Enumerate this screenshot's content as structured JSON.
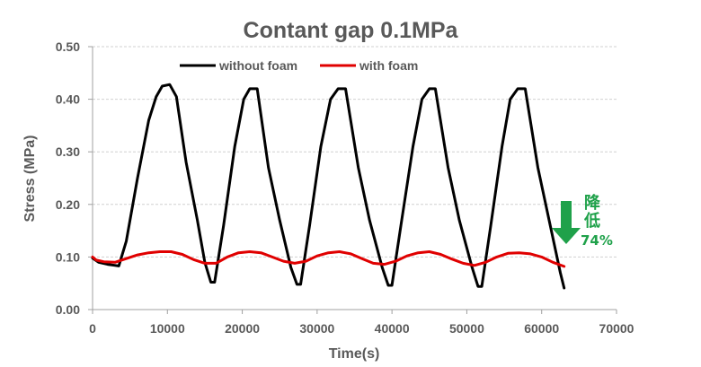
{
  "chart_data": {
    "type": "line",
    "title": "Contant gap 0.1MPa",
    "xlabel": "Time(s)",
    "ylabel": "Stress (MPa)",
    "xlim": [
      0,
      70000
    ],
    "ylim": [
      0,
      0.5
    ],
    "x_ticks": [
      "0",
      "10000",
      "20000",
      "30000",
      "40000",
      "50000",
      "60000",
      "70000"
    ],
    "y_ticks": [
      "0.00",
      "0.10",
      "0.20",
      "0.30",
      "0.40",
      "0.50"
    ],
    "grid": true,
    "legend_position": "top-left",
    "series": [
      {
        "name": "without foam",
        "color": "#000000",
        "x": [
          0,
          800,
          2000,
          3500,
          4500,
          6000,
          7500,
          8500,
          9300,
          10300,
          11200,
          12500,
          14000,
          15000,
          15800,
          16300,
          17500,
          19000,
          20200,
          21000,
          22000,
          23500,
          25000,
          26500,
          27300,
          27800,
          29000,
          30500,
          31800,
          32800,
          33800,
          35500,
          37000,
          38700,
          39500,
          40000,
          41200,
          42800,
          44000,
          45000,
          45800,
          47500,
          49000,
          50700,
          51500,
          52000,
          53200,
          54700,
          55800,
          56800,
          57800,
          59500,
          61000,
          62500,
          63000
        ],
        "y": [
          0.098,
          0.09,
          0.086,
          0.083,
          0.13,
          0.25,
          0.36,
          0.405,
          0.425,
          0.428,
          0.405,
          0.28,
          0.17,
          0.09,
          0.052,
          0.052,
          0.16,
          0.31,
          0.4,
          0.42,
          0.42,
          0.27,
          0.17,
          0.08,
          0.048,
          0.048,
          0.16,
          0.31,
          0.4,
          0.42,
          0.42,
          0.27,
          0.17,
          0.08,
          0.046,
          0.046,
          0.16,
          0.31,
          0.4,
          0.42,
          0.42,
          0.27,
          0.17,
          0.08,
          0.044,
          0.044,
          0.16,
          0.31,
          0.4,
          0.42,
          0.42,
          0.27,
          0.17,
          0.07,
          0.041
        ]
      },
      {
        "name": "with foam",
        "color": "#e00000",
        "x": [
          0,
          500,
          1500,
          3000,
          4500,
          6000,
          7500,
          9000,
          10500,
          12000,
          13500,
          15000,
          16500,
          18000,
          19500,
          21000,
          22500,
          24000,
          25500,
          27000,
          28500,
          30000,
          31500,
          33000,
          34500,
          36000,
          37500,
          39000,
          40500,
          42000,
          43500,
          45000,
          46500,
          48000,
          49500,
          51000,
          52500,
          54000,
          55500,
          57000,
          58500,
          60000,
          61500,
          63000
        ],
        "y": [
          0.1,
          0.094,
          0.091,
          0.09,
          0.097,
          0.104,
          0.108,
          0.11,
          0.11,
          0.105,
          0.095,
          0.088,
          0.088,
          0.1,
          0.108,
          0.11,
          0.108,
          0.1,
          0.092,
          0.088,
          0.092,
          0.102,
          0.108,
          0.11,
          0.106,
          0.097,
          0.088,
          0.086,
          0.092,
          0.102,
          0.108,
          0.11,
          0.105,
          0.096,
          0.088,
          0.084,
          0.09,
          0.1,
          0.107,
          0.108,
          0.106,
          0.1,
          0.09,
          0.082
        ]
      }
    ],
    "annotation": {
      "chars": [
        "降",
        "低"
      ],
      "percent": "74%",
      "color": "#1fa14a"
    }
  }
}
